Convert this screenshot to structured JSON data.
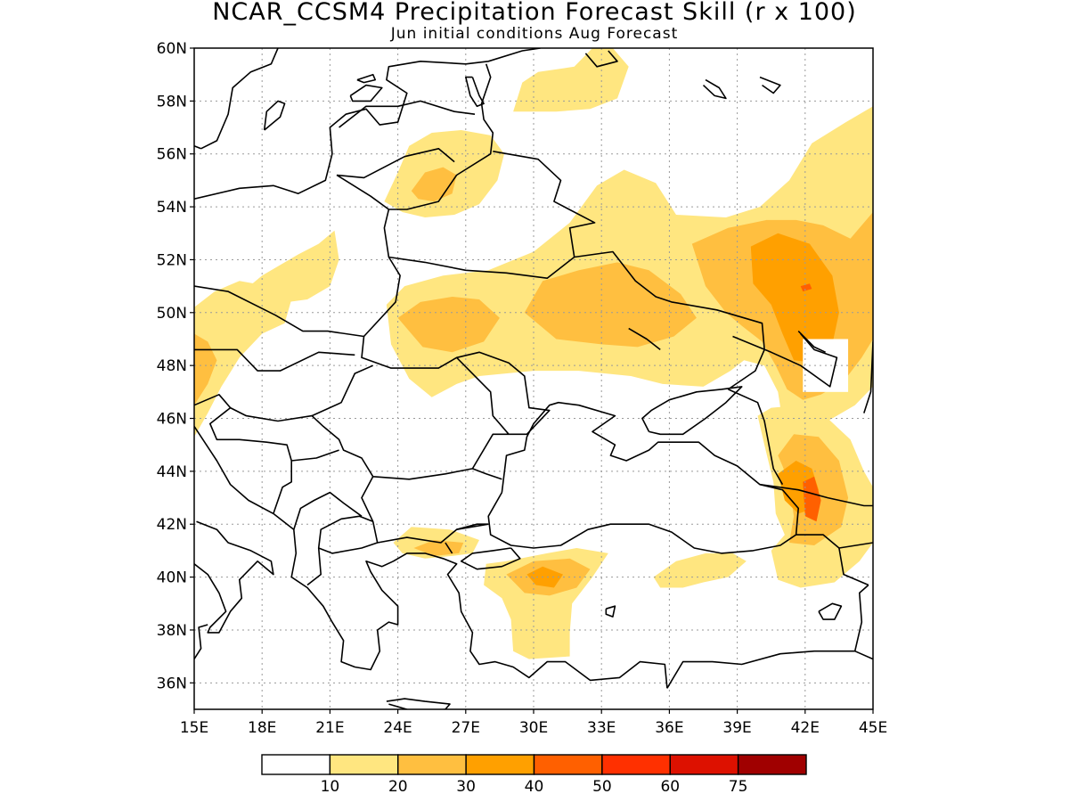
{
  "title": "NCAR_CCSM4 Precipitation Forecast Skill (r x 100)",
  "subtitle": "Jun initial conditions  Aug Forecast",
  "map": {
    "lon_range": [
      15,
      45
    ],
    "lat_range": [
      35,
      60
    ],
    "x_ticks": [
      "15E",
      "18E",
      "21E",
      "24E",
      "27E",
      "30E",
      "33E",
      "36E",
      "39E",
      "42E",
      "45E"
    ],
    "y_ticks": [
      "36N",
      "38N",
      "40N",
      "42N",
      "44N",
      "46N",
      "48N",
      "50N",
      "52N",
      "54N",
      "56N",
      "58N",
      "60N"
    ],
    "grid": "dotted",
    "masked_box": {
      "lon": [
        41.9,
        43.9
      ],
      "lat": [
        47,
        49
      ]
    }
  },
  "colorbar": {
    "colors": [
      "#ffffff",
      "#ffe680",
      "#ffbf40",
      "#ffa000",
      "#ff6000",
      "#ff3000",
      "#dd1100",
      "#a00000"
    ],
    "labels": [
      "10",
      "20",
      "30",
      "40",
      "50",
      "60",
      "75"
    ]
  },
  "skill_regions": [
    {
      "level": 1,
      "points": [
        [
          15,
          45.3
        ],
        [
          15.6,
          46.2
        ],
        [
          16.2,
          47.2
        ],
        [
          17,
          48.3
        ],
        [
          18,
          49.2
        ],
        [
          19,
          49.6
        ],
        [
          19.3,
          50.5
        ],
        [
          18.3,
          51
        ],
        [
          17,
          51.2
        ],
        [
          15.9,
          50.8
        ],
        [
          15,
          50.2
        ]
      ]
    },
    {
      "level": 2,
      "points": [
        [
          15,
          46.5
        ],
        [
          15.6,
          47.3
        ],
        [
          16,
          48.2
        ],
        [
          15.6,
          48.9
        ],
        [
          15,
          49.2
        ]
      ]
    },
    {
      "level": 1,
      "points": [
        [
          16.6,
          50.4
        ],
        [
          18,
          51.4
        ],
        [
          19.6,
          52.2
        ],
        [
          20.5,
          52.6
        ],
        [
          21.2,
          53.1
        ],
        [
          21.4,
          52
        ],
        [
          21,
          51
        ],
        [
          20,
          50.5
        ],
        [
          18.3,
          50.3
        ]
      ]
    },
    {
      "level": 1,
      "points": [
        [
          23.4,
          54.2
        ],
        [
          24,
          55.3
        ],
        [
          24.5,
          56.3
        ],
        [
          25.5,
          56.8
        ],
        [
          26.8,
          56.9
        ],
        [
          28.1,
          56.7
        ],
        [
          28.7,
          56
        ],
        [
          28.4,
          55
        ],
        [
          27.6,
          54.1
        ],
        [
          26.5,
          53.7
        ],
        [
          25.2,
          53.6
        ],
        [
          24.2,
          53.8
        ]
      ]
    },
    {
      "level": 2,
      "points": [
        [
          24.6,
          54.6
        ],
        [
          25.2,
          55.3
        ],
        [
          26,
          55.5
        ],
        [
          26.6,
          55.2
        ],
        [
          26.4,
          54.5
        ],
        [
          25.6,
          54.2
        ],
        [
          24.9,
          54.3
        ]
      ]
    },
    {
      "level": 1,
      "points": [
        [
          29.1,
          57.6
        ],
        [
          29.5,
          58.7
        ],
        [
          30.2,
          59.1
        ],
        [
          31.8,
          59.3
        ],
        [
          32.6,
          60
        ],
        [
          33.5,
          60
        ],
        [
          34.2,
          59.3
        ],
        [
          33.7,
          58.1
        ],
        [
          32.5,
          57.7
        ],
        [
          31,
          57.6
        ]
      ]
    },
    {
      "level": 1,
      "points": [
        [
          23.5,
          50.3
        ],
        [
          24.3,
          51
        ],
        [
          26,
          51.4
        ],
        [
          28,
          51.6
        ],
        [
          30,
          52.3
        ],
        [
          31.6,
          53.4
        ],
        [
          32.8,
          54.8
        ],
        [
          34,
          55.4
        ],
        [
          35.4,
          54.9
        ],
        [
          36.3,
          53.7
        ],
        [
          38.5,
          53.6
        ],
        [
          40,
          54
        ],
        [
          41.3,
          55
        ],
        [
          42.3,
          56.4
        ],
        [
          43.8,
          57.2
        ],
        [
          45,
          57.8
        ],
        [
          45,
          47.2
        ],
        [
          44.2,
          46.5
        ],
        [
          43,
          45.9
        ],
        [
          41,
          45.9
        ],
        [
          40.8,
          47
        ],
        [
          40.2,
          48
        ],
        [
          39.3,
          48.2
        ],
        [
          38.7,
          47.8
        ],
        [
          37.5,
          47.2
        ],
        [
          35.7,
          47.3
        ],
        [
          34.3,
          47.6
        ],
        [
          32,
          47.8
        ],
        [
          30,
          47.8
        ],
        [
          27.6,
          47.6
        ],
        [
          26.6,
          47.3
        ],
        [
          25.5,
          46.8
        ],
        [
          24.5,
          47.5
        ],
        [
          23.7,
          48.8
        ]
      ]
    },
    {
      "level": 2,
      "points": [
        [
          24,
          49.8
        ],
        [
          25,
          50.4
        ],
        [
          26.4,
          50.6
        ],
        [
          27.6,
          50.5
        ],
        [
          28.5,
          49.8
        ],
        [
          27.8,
          48.9
        ],
        [
          26.4,
          48.5
        ],
        [
          25.1,
          48.7
        ]
      ]
    },
    {
      "level": 2,
      "points": [
        [
          29.6,
          50
        ],
        [
          30.4,
          51.2
        ],
        [
          32,
          51.6
        ],
        [
          33.7,
          51.9
        ],
        [
          35.1,
          51.6
        ],
        [
          36.5,
          50.7
        ],
        [
          37.2,
          49.8
        ],
        [
          36.2,
          49.1
        ],
        [
          34.6,
          48.7
        ],
        [
          33,
          48.8
        ],
        [
          31,
          49
        ]
      ]
    },
    {
      "level": 2,
      "points": [
        [
          37,
          52.6
        ],
        [
          38.6,
          53.2
        ],
        [
          40.3,
          53.5
        ],
        [
          41.6,
          53.5
        ],
        [
          42.8,
          53.3
        ],
        [
          44,
          52.8
        ],
        [
          45,
          53.8
        ],
        [
          45,
          49
        ],
        [
          44.5,
          48.3
        ],
        [
          43.7,
          47.4
        ],
        [
          42.7,
          46.9
        ],
        [
          41.9,
          46.7
        ],
        [
          41.2,
          47.1
        ],
        [
          40.7,
          48
        ],
        [
          40.1,
          48.9
        ],
        [
          39.2,
          49.5
        ],
        [
          38.5,
          50
        ],
        [
          37.6,
          51
        ]
      ]
    },
    {
      "level": 3,
      "points": [
        [
          39.6,
          52.5
        ],
        [
          40.8,
          53
        ],
        [
          42.2,
          52.6
        ],
        [
          43.2,
          51.4
        ],
        [
          43.5,
          50
        ],
        [
          43.2,
          48.8
        ],
        [
          42.5,
          48.1
        ],
        [
          41.5,
          48.2
        ],
        [
          41,
          49.2
        ],
        [
          40.5,
          50.3
        ],
        [
          39.7,
          51.1
        ]
      ]
    },
    {
      "level": 4,
      "points": [
        [
          41.8,
          51
        ],
        [
          42.2,
          51.1
        ],
        [
          42.3,
          50.9
        ],
        [
          41.9,
          50.8
        ]
      ]
    },
    {
      "level": 1,
      "points": [
        [
          39.9,
          46.1
        ],
        [
          40.5,
          46.4
        ],
        [
          41.8,
          46.5
        ],
        [
          43,
          46
        ],
        [
          44,
          45.2
        ],
        [
          44.6,
          44
        ],
        [
          45,
          43.4
        ],
        [
          45,
          41.3
        ],
        [
          44.4,
          40.6
        ],
        [
          43.3,
          39.8
        ],
        [
          41.8,
          39.6
        ],
        [
          40.8,
          39.9
        ],
        [
          40.5,
          41
        ],
        [
          41.1,
          41.6
        ],
        [
          40.7,
          42.4
        ],
        [
          40.6,
          43.6
        ],
        [
          40.2,
          45
        ]
      ]
    },
    {
      "level": 2,
      "points": [
        [
          40.8,
          44.6
        ],
        [
          41.5,
          45.4
        ],
        [
          42.6,
          45.3
        ],
        [
          43.5,
          44.4
        ],
        [
          43.9,
          43
        ],
        [
          43.6,
          41.9
        ],
        [
          42.4,
          41.2
        ],
        [
          41.3,
          41.3
        ],
        [
          41.5,
          42.3
        ],
        [
          41.3,
          43.5
        ],
        [
          41,
          44.2
        ]
      ]
    },
    {
      "level": 3,
      "points": [
        [
          40.8,
          43.9
        ],
        [
          41.6,
          44.4
        ],
        [
          42.3,
          44.1
        ],
        [
          42.6,
          43.3
        ],
        [
          42.4,
          42.6
        ],
        [
          41.7,
          42.4
        ],
        [
          41.1,
          42.9
        ]
      ]
    },
    {
      "level": 4,
      "points": [
        [
          41.9,
          43.6
        ],
        [
          42.4,
          43.8
        ],
        [
          42.7,
          42.9
        ],
        [
          42.5,
          42.1
        ],
        [
          42,
          42.3
        ]
      ]
    },
    {
      "level": 1,
      "points": [
        [
          35.3,
          40
        ],
        [
          36.3,
          40.6
        ],
        [
          37.6,
          40.9
        ],
        [
          38.8,
          40.9
        ],
        [
          39.4,
          40.6
        ],
        [
          38.6,
          40
        ],
        [
          37.5,
          39.8
        ],
        [
          36.6,
          39.6
        ],
        [
          35.6,
          39.6
        ]
      ]
    },
    {
      "level": 1,
      "points": [
        [
          23.8,
          41.3
        ],
        [
          24.6,
          41.9
        ],
        [
          26.3,
          41.8
        ],
        [
          27.6,
          41.4
        ],
        [
          27.3,
          40.9
        ],
        [
          26.4,
          40.8
        ],
        [
          25.2,
          40.7
        ],
        [
          24.2,
          40.9
        ]
      ]
    },
    {
      "level": 2,
      "points": [
        [
          24.7,
          41.1
        ],
        [
          25.6,
          41.4
        ],
        [
          26.9,
          41.3
        ],
        [
          26.7,
          40.9
        ],
        [
          25.6,
          40.8
        ]
      ]
    },
    {
      "level": 1,
      "points": [
        [
          27.8,
          39.7
        ],
        [
          27.9,
          40.5
        ],
        [
          28.8,
          40.6
        ],
        [
          30.6,
          40.9
        ],
        [
          31.9,
          41.1
        ],
        [
          33.3,
          40.9
        ],
        [
          32.6,
          40
        ],
        [
          31.7,
          39
        ],
        [
          31.6,
          37.9
        ],
        [
          31.6,
          37
        ],
        [
          29.8,
          36.9
        ],
        [
          29.1,
          37.2
        ],
        [
          29,
          38.4
        ],
        [
          28.6,
          39.2
        ]
      ]
    },
    {
      "level": 2,
      "points": [
        [
          28.8,
          40.1
        ],
        [
          30,
          40.6
        ],
        [
          31.6,
          40.7
        ],
        [
          32.5,
          40.3
        ],
        [
          31.9,
          39.6
        ],
        [
          30.7,
          39.3
        ],
        [
          29.6,
          39.4
        ]
      ]
    },
    {
      "level": 3,
      "points": [
        [
          29.7,
          40.1
        ],
        [
          30.4,
          40.4
        ],
        [
          31.3,
          40.1
        ],
        [
          30.9,
          39.6
        ],
        [
          30.1,
          39.7
        ]
      ]
    }
  ]
}
